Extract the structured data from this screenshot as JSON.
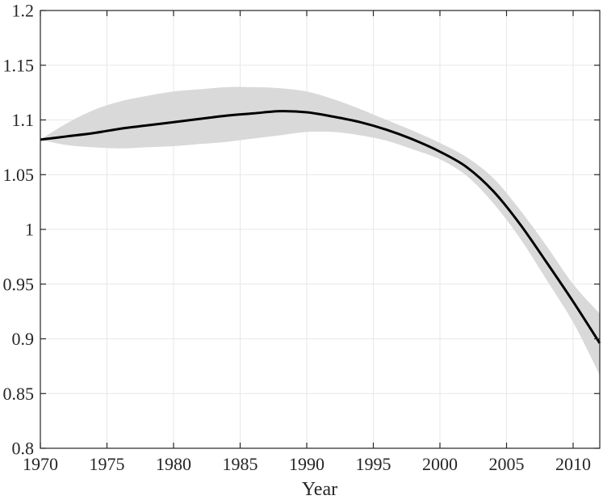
{
  "figure": {
    "background": "#ffffff"
  },
  "chart_data": {
    "type": "line",
    "title": "",
    "xlabel": "Year",
    "ylabel": "",
    "xlim": [
      1970,
      2012
    ],
    "ylim": [
      0.8,
      1.2
    ],
    "grid": true,
    "legend": "none",
    "x_ticks": [
      {
        "v": 1970,
        "label": "1970"
      },
      {
        "v": 1975,
        "label": "1975"
      },
      {
        "v": 1980,
        "label": "1980"
      },
      {
        "v": 1985,
        "label": "1985"
      },
      {
        "v": 1990,
        "label": "1990"
      },
      {
        "v": 1995,
        "label": "1995"
      },
      {
        "v": 2000,
        "label": "2000"
      },
      {
        "v": 2005,
        "label": "2005"
      },
      {
        "v": 2010,
        "label": "2010"
      }
    ],
    "y_ticks": [
      {
        "v": 1.2,
        "label": "1.2"
      },
      {
        "v": 1.15,
        "label": "1.15"
      },
      {
        "v": 1.1,
        "label": "1.1"
      },
      {
        "v": 1.05,
        "label": "1.05"
      },
      {
        "v": 1.0,
        "label": "1"
      },
      {
        "v": 0.95,
        "label": "0.95"
      },
      {
        "v": 0.9,
        "label": "0.9"
      },
      {
        "v": 0.85,
        "label": "0.85"
      },
      {
        "v": 0.8,
        "label": "0.8"
      }
    ],
    "x": [
      1970,
      1972,
      1974,
      1976,
      1978,
      1980,
      1982,
      1984,
      1986,
      1988,
      1990,
      1992,
      1994,
      1996,
      1998,
      2000,
      2002,
      2004,
      2006,
      2008,
      2010,
      2012
    ],
    "series": [
      {
        "name": "estimate",
        "values": [
          1.082,
          1.085,
          1.088,
          1.092,
          1.095,
          1.098,
          1.101,
          1.104,
          1.106,
          1.108,
          1.107,
          1.103,
          1.098,
          1.091,
          1.082,
          1.071,
          1.057,
          1.035,
          1.005,
          0.97,
          0.934,
          0.896
        ]
      },
      {
        "name": "band-lower",
        "values": [
          1.082,
          1.077,
          1.075,
          1.074,
          1.075,
          1.076,
          1.078,
          1.08,
          1.083,
          1.086,
          1.089,
          1.089,
          1.086,
          1.081,
          1.073,
          1.064,
          1.049,
          1.024,
          0.992,
          0.954,
          0.915,
          0.867
        ]
      },
      {
        "name": "band-upper",
        "values": [
          1.082,
          1.097,
          1.109,
          1.117,
          1.122,
          1.126,
          1.128,
          1.13,
          1.13,
          1.129,
          1.126,
          1.119,
          1.11,
          1.1,
          1.09,
          1.079,
          1.066,
          1.047,
          1.018,
          0.985,
          0.95,
          0.923
        ]
      }
    ],
    "colors": {
      "line": "#000000",
      "band": "#d9d9d9",
      "grid": "#e7e7e7",
      "axis": "#262626",
      "tick_label": "#262626"
    }
  }
}
